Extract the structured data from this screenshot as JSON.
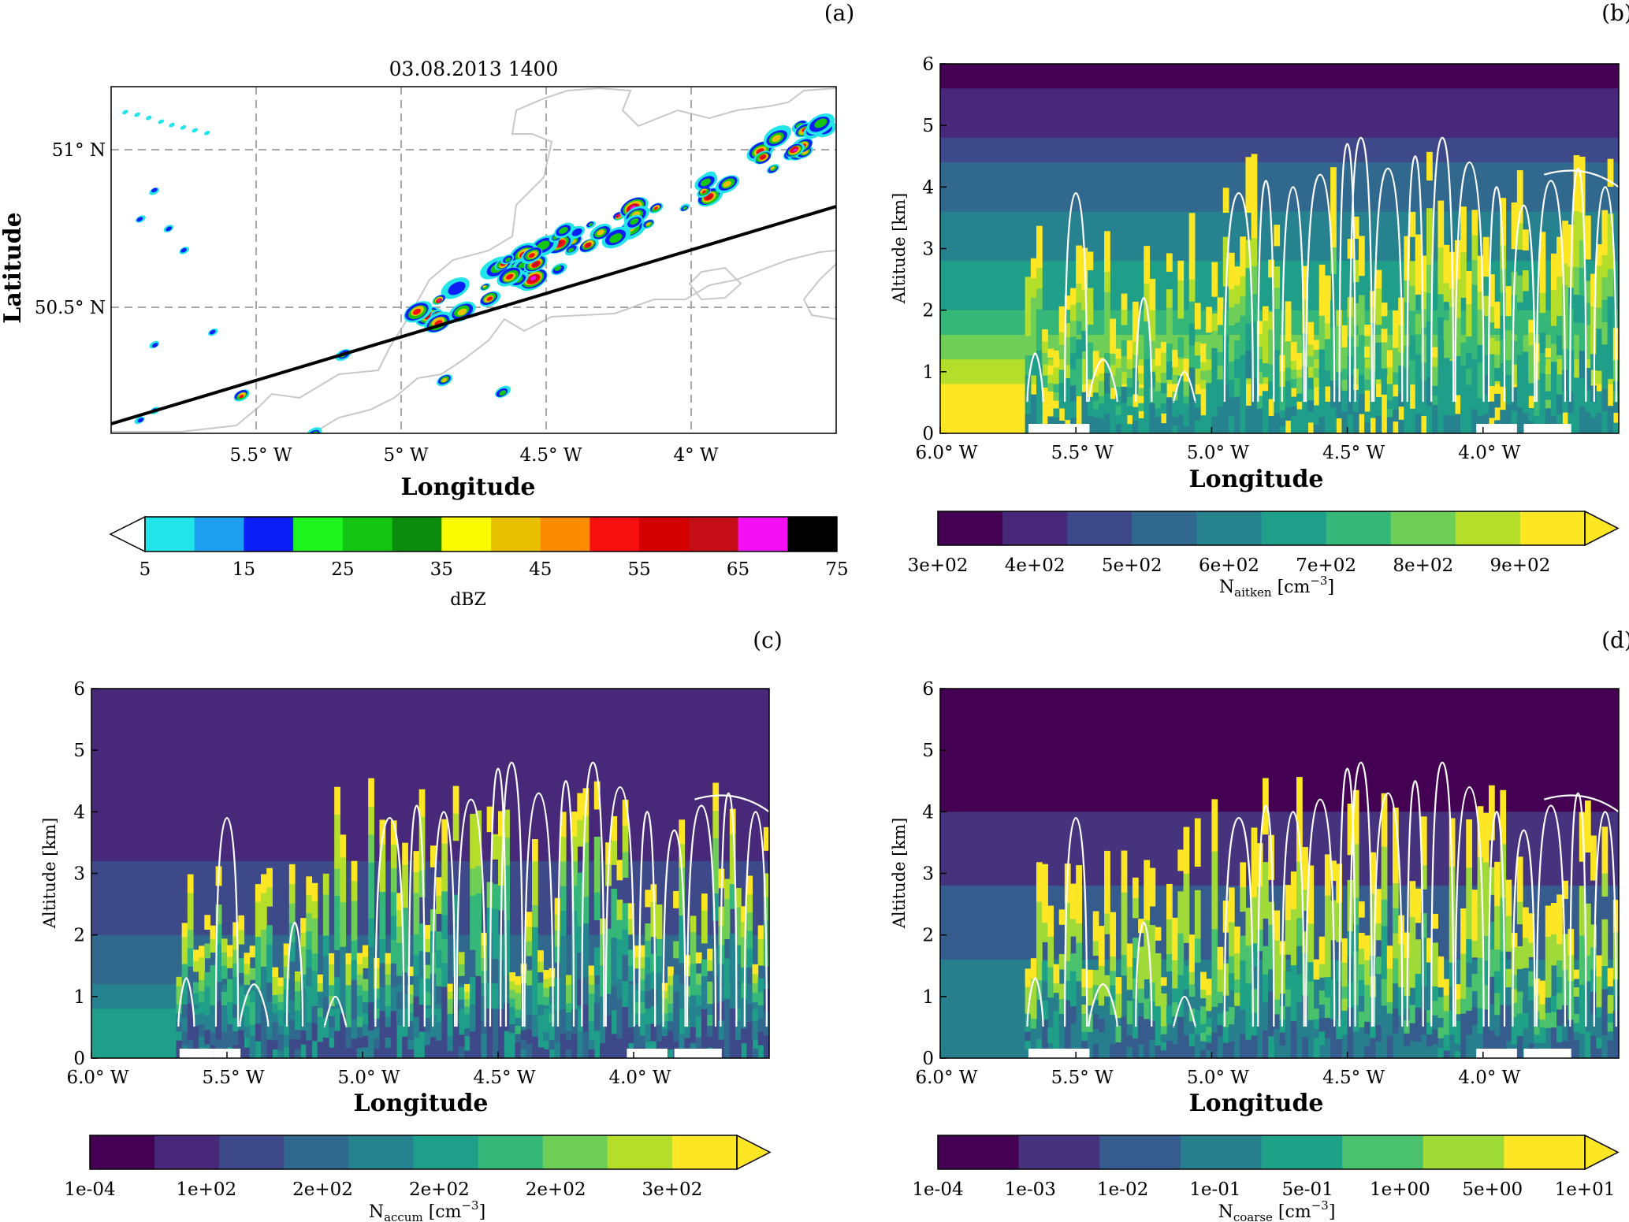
{
  "panel_labels": {
    "a": "(a)",
    "b": "(b)",
    "c": "(c)",
    "d": "(d)"
  },
  "chart_data": [
    {
      "id": "a",
      "type": "heatmap",
      "title": "03.08.2013 1400",
      "xlabel": "Longitude",
      "ylabel": "Latitude",
      "x_ticks": [
        {
          "value": -5.5,
          "label": "5.5° W"
        },
        {
          "value": -5.0,
          "label": "5° W"
        },
        {
          "value": -4.5,
          "label": "4.5° W"
        },
        {
          "value": -4.0,
          "label": "4° W"
        }
      ],
      "y_ticks": [
        {
          "value": 51.0,
          "label": "51° N"
        },
        {
          "value": 50.5,
          "label": "50.5° N"
        }
      ],
      "xlim": [
        -6.0,
        -3.5
      ],
      "ylim": [
        50.1,
        51.2
      ],
      "grid": true,
      "cross_section_line": [
        [
          -6.0,
          50.13
        ],
        [
          -3.5,
          50.82
        ]
      ],
      "colorbar": {
        "label": "dBZ",
        "boundaries": [
          5,
          10,
          15,
          20,
          25,
          30,
          35,
          40,
          45,
          50,
          55,
          60,
          65,
          70,
          75
        ],
        "tick_labels": [
          "5",
          "15",
          "25",
          "35",
          "45",
          "55",
          "65",
          "75"
        ],
        "colors": [
          "#22e5e9",
          "#1e9ff0",
          "#0a1ef5",
          "#1ef51e",
          "#14c514",
          "#0c8c0c",
          "#fafa00",
          "#e8c000",
          "#fb8c00",
          "#f50f0f",
          "#d20000",
          "#c40d16",
          "#f50ff5",
          "#000000"
        ],
        "extend": "min"
      }
    },
    {
      "id": "b",
      "type": "heatmap",
      "xlabel": "Longitude",
      "ylabel": "Altitude [km]",
      "x_ticks": [
        "6.0° W",
        "5.5° W",
        "5.0° W",
        "4.5° W",
        "4.0° W"
      ],
      "y_ticks": [
        "0",
        "1",
        "2",
        "3",
        "4",
        "5",
        "6"
      ],
      "ylim": [
        0,
        6
      ],
      "colorbar": {
        "label_main": "N",
        "label_sub": "aitken",
        "label_unit": " [cm",
        "label_sup": "−3",
        "label_end": "]",
        "tick_labels": [
          "3e+02",
          "4e+02",
          "5e+02",
          "6e+02",
          "7e+02",
          "8e+02",
          "9e+02"
        ],
        "colors": [
          "#440154",
          "#482878",
          "#3e4989",
          "#31688e",
          "#26828e",
          "#1f9e89",
          "#35b779",
          "#6ece58",
          "#b5de2b",
          "#fde725"
        ],
        "extend": "max"
      }
    },
    {
      "id": "c",
      "type": "heatmap",
      "xlabel": "Longitude",
      "ylabel": "Altitude [km]",
      "x_ticks": [
        "6.0° W",
        "5.5° W",
        "5.0° W",
        "4.5° W",
        "4.0° W"
      ],
      "y_ticks": [
        "0",
        "1",
        "2",
        "3",
        "4",
        "5",
        "6"
      ],
      "ylim": [
        0,
        6
      ],
      "colorbar": {
        "label_main": "N",
        "label_sub": "accum",
        "label_unit": " [cm",
        "label_sup": "−3",
        "label_end": "]",
        "tick_labels": [
          "1e-04",
          "1e+02",
          "2e+02",
          "2e+02",
          "2e+02",
          "3e+02"
        ],
        "colors": [
          "#440154",
          "#482878",
          "#3e4989",
          "#31688e",
          "#26828e",
          "#1f9e89",
          "#35b779",
          "#6ece58",
          "#b5de2b",
          "#fde725"
        ],
        "extend": "max"
      }
    },
    {
      "id": "d",
      "type": "heatmap",
      "xlabel": "Longitude",
      "ylabel": "Altitude [km]",
      "x_ticks": [
        "6.0° W",
        "5.5° W",
        "5.0° W",
        "4.5° W",
        "4.0° W"
      ],
      "y_ticks": [
        "0",
        "1",
        "2",
        "3",
        "4",
        "5",
        "6"
      ],
      "ylim": [
        0,
        6
      ],
      "colorbar": {
        "label_main": "N",
        "label_sub": "coarse",
        "label_unit": " [cm",
        "label_sup": "−3",
        "label_end": "]",
        "tick_labels": [
          "1e-04",
          "1e-03",
          "1e-02",
          "1e-01",
          "5e-01",
          "1e+00",
          "5e+00",
          "1e+01"
        ],
        "colors": [
          "#440154",
          "#46337e",
          "#365c8d",
          "#277f8e",
          "#1fa187",
          "#4ac16d",
          "#a0da39",
          "#fde725"
        ],
        "extend": "max"
      }
    }
  ]
}
